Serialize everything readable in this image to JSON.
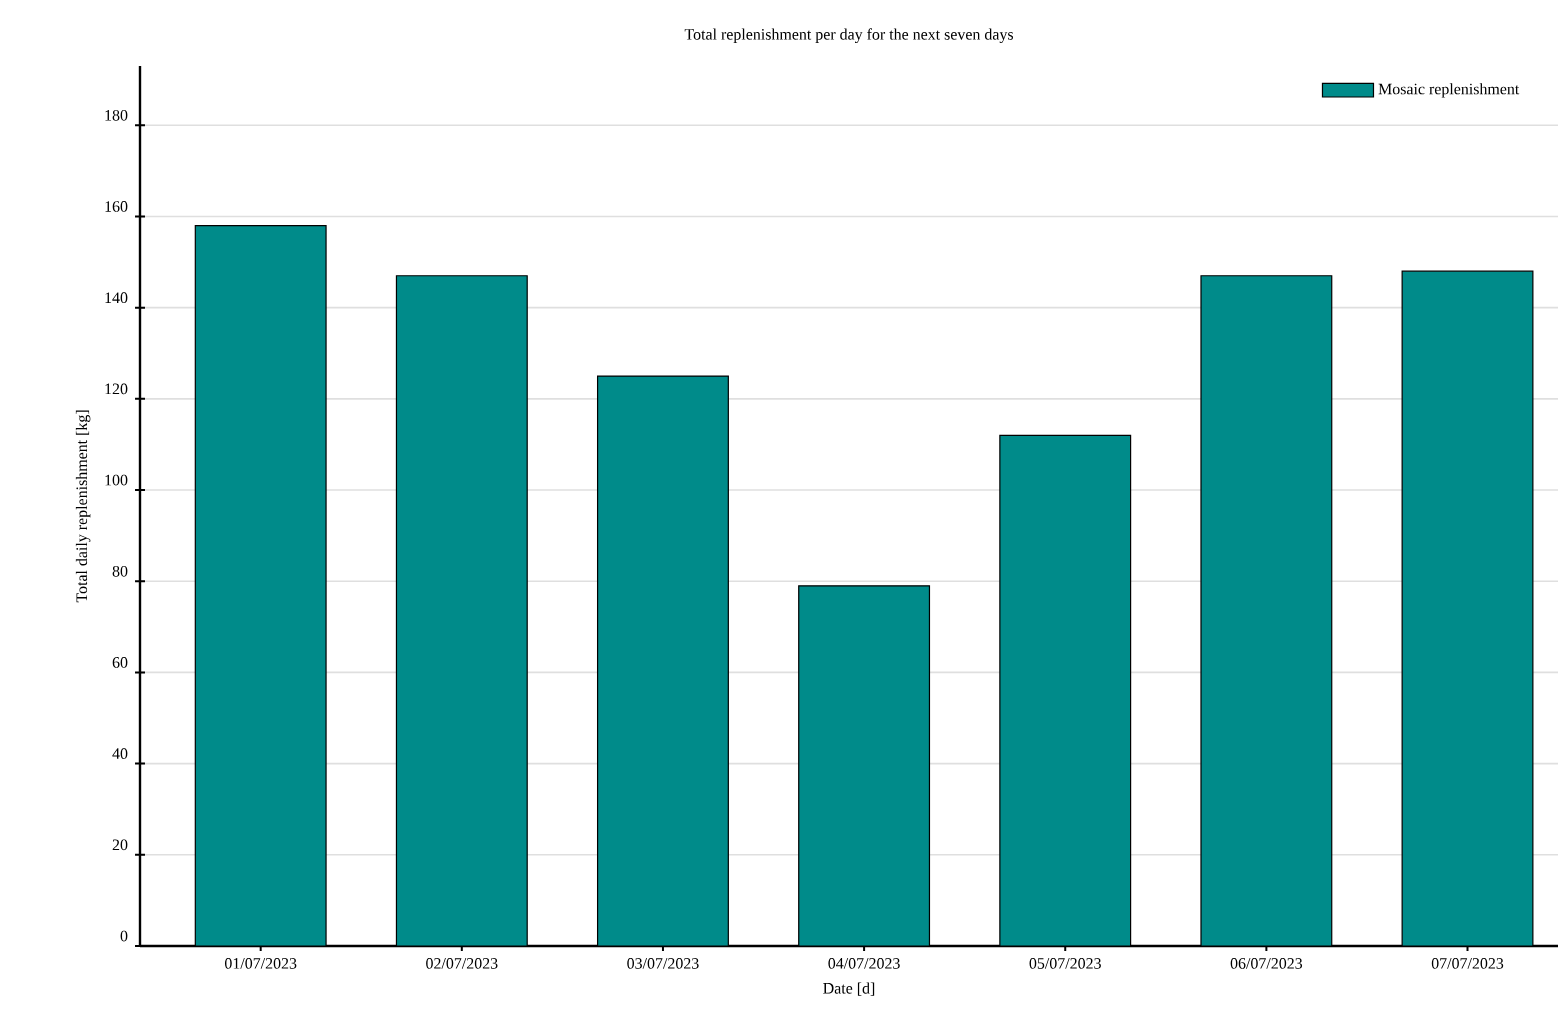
{
  "chart_data": {
    "type": "bar",
    "title": "Total replenishment per day for the next seven days",
    "xlabel": "Date [d]",
    "ylabel": "Total daily replenishment [kg]",
    "categories": [
      "01/07/2023",
      "02/07/2023",
      "03/07/2023",
      "04/07/2023",
      "05/07/2023",
      "06/07/2023",
      "07/07/2023"
    ],
    "series": [
      {
        "name": "Mosaic replenishment",
        "color": "#008b8a",
        "values": [
          158,
          147,
          125,
          79,
          112,
          147,
          148
        ]
      }
    ],
    "ylim": [
      0,
      193
    ],
    "yticks": [
      0,
      20,
      40,
      60,
      80,
      100,
      120,
      140,
      160,
      180
    ],
    "grid": "y",
    "legend": "top right"
  }
}
